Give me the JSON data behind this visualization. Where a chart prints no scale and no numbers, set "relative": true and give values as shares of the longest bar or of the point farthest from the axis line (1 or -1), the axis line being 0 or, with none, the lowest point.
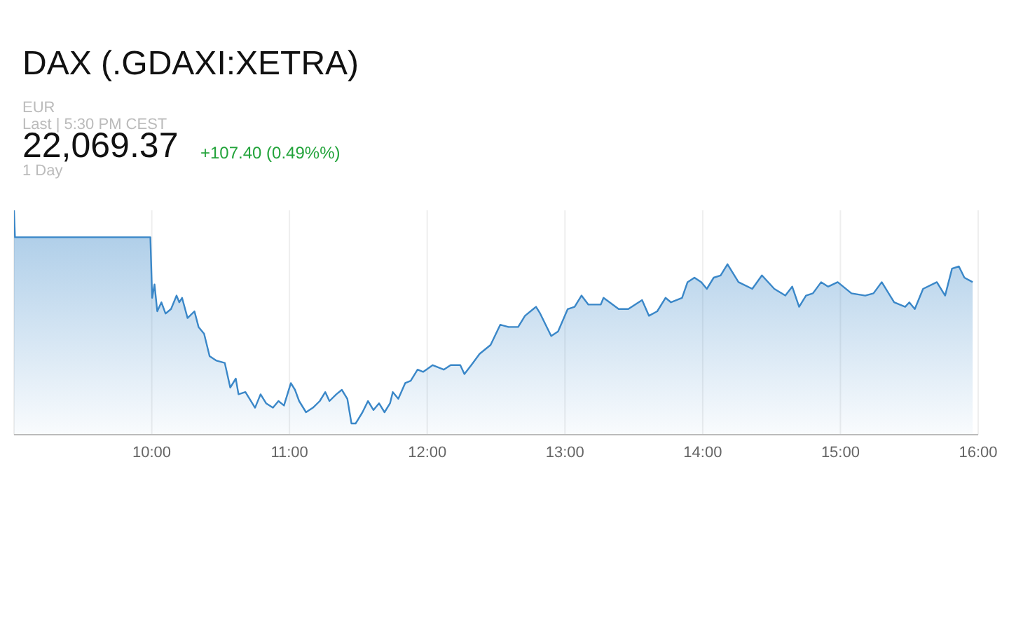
{
  "chart_data": {
    "type": "area",
    "title": "DAX (.GDAXI:XETRA)",
    "annotations": [
      "EUR",
      "Last | 5:30 PM CEST",
      "22,069.37",
      "+107.40 (0.49%%)",
      "1 Day"
    ],
    "relative": true,
    "grid": "x",
    "marker": "none",
    "line_style": "solid",
    "xlim": [
      9,
      16
    ],
    "xticks": [
      {
        "value": 10,
        "label": "10:00"
      },
      {
        "value": 11,
        "label": "11:00"
      },
      {
        "value": 12,
        "label": "12:00"
      },
      {
        "value": 13,
        "label": "13:00"
      },
      {
        "value": 14,
        "label": "14:00"
      },
      {
        "value": 15,
        "label": "15:00"
      },
      {
        "value": 16,
        "label": "16:00"
      }
    ],
    "series": [
      {
        "color": "#3a87c8",
        "x": [
          9.0,
          9.007,
          9.99,
          10.003,
          10.02,
          10.04,
          10.07,
          10.1,
          10.14,
          10.18,
          10.2,
          10.22,
          10.26,
          10.31,
          10.34,
          10.38,
          10.42,
          10.47,
          10.53,
          10.57,
          10.61,
          10.63,
          10.68,
          10.75,
          10.79,
          10.83,
          10.88,
          10.92,
          10.96,
          11.01,
          11.04,
          11.07,
          11.12,
          11.17,
          11.22,
          11.26,
          11.29,
          11.34,
          11.38,
          11.42,
          11.45,
          11.48,
          11.53,
          11.57,
          11.61,
          11.65,
          11.69,
          11.73,
          11.75,
          11.79,
          11.84,
          11.88,
          11.93,
          11.97,
          12.04,
          12.12,
          12.17,
          12.24,
          12.27,
          12.32,
          12.38,
          12.46,
          12.53,
          12.59,
          12.66,
          12.71,
          12.79,
          12.82,
          12.9,
          12.95,
          13.02,
          13.07,
          13.12,
          13.17,
          13.26,
          13.28,
          13.39,
          13.46,
          13.56,
          13.61,
          13.67,
          13.73,
          13.77,
          13.85,
          13.89,
          13.94,
          13.99,
          14.03,
          14.08,
          14.13,
          14.18,
          14.26,
          14.36,
          14.43,
          14.52,
          14.6,
          14.65,
          14.7,
          14.75,
          14.8,
          14.86,
          14.91,
          14.98,
          15.08,
          15.18,
          15.24,
          15.3,
          15.39,
          15.47,
          15.5,
          15.54,
          15.6,
          15.7,
          15.76,
          15.81,
          15.86,
          15.9,
          15.96
        ],
        "values": [
          1.0,
          0.88,
          0.88,
          0.61,
          0.67,
          0.55,
          0.59,
          0.54,
          0.56,
          0.62,
          0.59,
          0.61,
          0.52,
          0.55,
          0.48,
          0.45,
          0.35,
          0.33,
          0.32,
          0.21,
          0.25,
          0.18,
          0.19,
          0.12,
          0.18,
          0.14,
          0.12,
          0.15,
          0.13,
          0.23,
          0.2,
          0.15,
          0.1,
          0.12,
          0.15,
          0.19,
          0.15,
          0.18,
          0.2,
          0.16,
          0.05,
          0.05,
          0.1,
          0.15,
          0.11,
          0.14,
          0.1,
          0.14,
          0.19,
          0.16,
          0.23,
          0.24,
          0.29,
          0.28,
          0.31,
          0.29,
          0.31,
          0.31,
          0.27,
          0.31,
          0.36,
          0.4,
          0.49,
          0.48,
          0.48,
          0.53,
          0.57,
          0.54,
          0.44,
          0.46,
          0.56,
          0.57,
          0.62,
          0.58,
          0.58,
          0.61,
          0.56,
          0.56,
          0.6,
          0.53,
          0.55,
          0.61,
          0.59,
          0.61,
          0.68,
          0.7,
          0.68,
          0.65,
          0.7,
          0.71,
          0.76,
          0.68,
          0.65,
          0.71,
          0.65,
          0.62,
          0.66,
          0.57,
          0.62,
          0.63,
          0.68,
          0.66,
          0.68,
          0.63,
          0.62,
          0.63,
          0.68,
          0.59,
          0.57,
          0.59,
          0.56,
          0.65,
          0.68,
          0.62,
          0.74,
          0.75,
          0.7,
          0.68
        ]
      }
    ]
  }
}
